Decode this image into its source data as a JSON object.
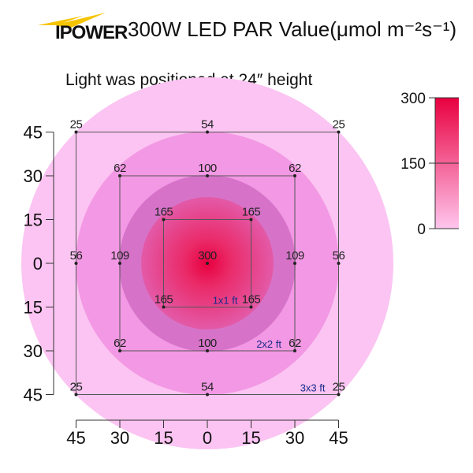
{
  "brand": {
    "logo_text": "IPOWER",
    "bolt_color": "#f5c400"
  },
  "header": {
    "title": "300W LED  PAR Value(μmol m⁻²s⁻¹)"
  },
  "chart_data": {
    "type": "heatmap",
    "subtitle": "Light was positioned at 24″ height",
    "x_ticks": [
      "45",
      "30",
      "15",
      "0",
      "15",
      "30",
      "45"
    ],
    "y_ticks": [
      "45",
      "30",
      "15",
      "0",
      "15",
      "30",
      "45"
    ],
    "x_tick_values": [
      -45,
      -30,
      -15,
      0,
      15,
      30,
      45
    ],
    "y_tick_values": [
      45,
      30,
      15,
      0,
      -15,
      -30,
      -45
    ],
    "xlim": [
      -45,
      45
    ],
    "ylim": [
      -45,
      45
    ],
    "points": [
      {
        "x": -45,
        "y": 45,
        "value": 25
      },
      {
        "x": 0,
        "y": 45,
        "value": 54
      },
      {
        "x": 45,
        "y": 45,
        "value": 25
      },
      {
        "x": -30,
        "y": 30,
        "value": 62
      },
      {
        "x": 0,
        "y": 30,
        "value": 100
      },
      {
        "x": 30,
        "y": 30,
        "value": 62
      },
      {
        "x": -15,
        "y": 15,
        "value": 165
      },
      {
        "x": 15,
        "y": 15,
        "value": 165
      },
      {
        "x": -45,
        "y": 0,
        "value": 56
      },
      {
        "x": -30,
        "y": 0,
        "value": 109
      },
      {
        "x": 0,
        "y": 0,
        "value": 300
      },
      {
        "x": 30,
        "y": 0,
        "value": 109
      },
      {
        "x": 45,
        "y": 0,
        "value": 56
      },
      {
        "x": -15,
        "y": -15,
        "value": 165
      },
      {
        "x": 15,
        "y": -15,
        "value": 165
      },
      {
        "x": -30,
        "y": -30,
        "value": 62
      },
      {
        "x": 0,
        "y": -30,
        "value": 100
      },
      {
        "x": 30,
        "y": -30,
        "value": 62
      },
      {
        "x": -45,
        "y": -45,
        "value": 25
      },
      {
        "x": 0,
        "y": -45,
        "value": 54
      },
      {
        "x": 45,
        "y": -45,
        "value": 25
      }
    ],
    "squares": [
      {
        "half": 15,
        "label": "1x1 ft"
      },
      {
        "half": 30,
        "label": "2x2 ft"
      },
      {
        "half": 45,
        "label": "3x3 ft"
      }
    ],
    "colorbar": {
      "ticks": [
        "300",
        "150",
        "0"
      ],
      "tick_values": [
        300,
        150,
        0
      ],
      "range": [
        0,
        300
      ],
      "colors": [
        "#e8003f",
        "#ffc6ee"
      ]
    },
    "colors": {
      "ring_outer": "#fbc4f2",
      "ring_mid": "#f398e4",
      "ring_inner": "#d673c9",
      "ring_core": "#e653a8",
      "center": "#e8003f",
      "square_label": "#1a2a8a"
    }
  }
}
